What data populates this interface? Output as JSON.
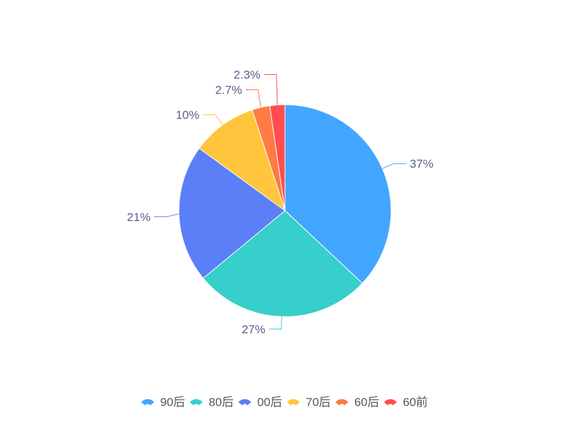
{
  "chart_data": {
    "type": "pie",
    "title": "",
    "legend_position": "bottom",
    "slices": [
      {
        "name": "90后",
        "value": 37,
        "label": "37%",
        "color": "#42A5FF"
      },
      {
        "name": "80后",
        "value": 27,
        "label": "27%",
        "color": "#36CFCB"
      },
      {
        "name": "00后",
        "value": 21,
        "label": "21%",
        "color": "#5B7FF6"
      },
      {
        "name": "70后",
        "value": 10,
        "label": "10%",
        "color": "#FFC53D"
      },
      {
        "name": "60后",
        "value": 2.7,
        "label": "2.7%",
        "color": "#FF7A45"
      },
      {
        "name": "60前",
        "value": 2.3,
        "label": "2.3%",
        "color": "#FF4D4F"
      }
    ]
  }
}
